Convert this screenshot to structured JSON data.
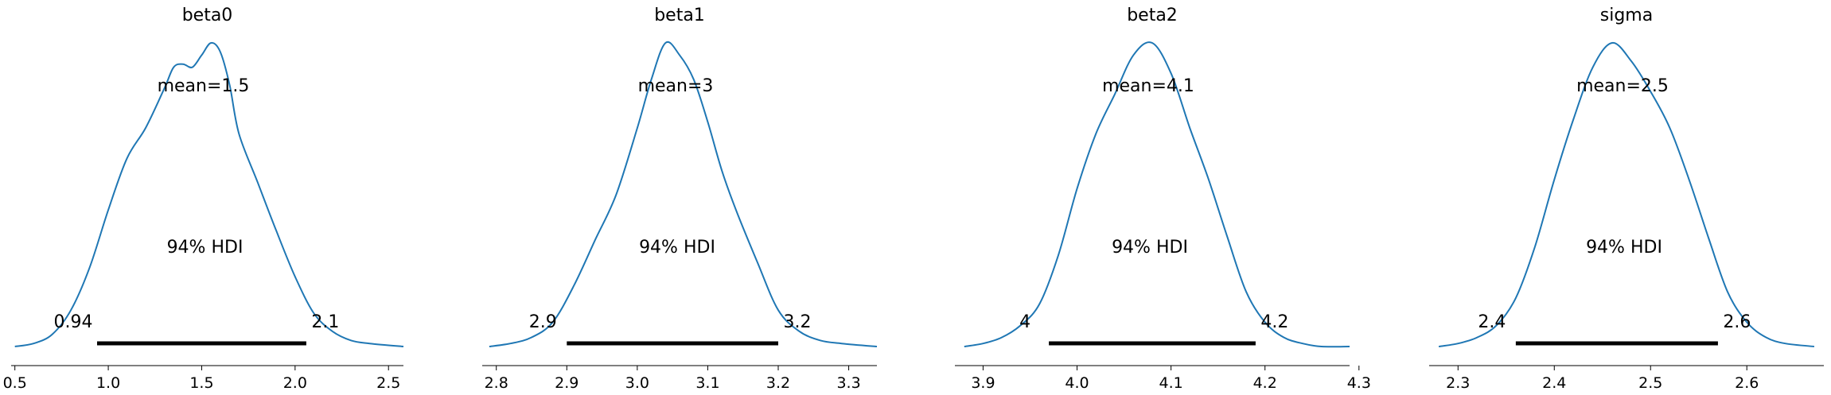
{
  "chart_data": [
    {
      "type": "area",
      "title": "beta0",
      "mean_label": "mean=1.5",
      "hdi_label": "94% HDI",
      "hdi": [
        0.94,
        2.06
      ],
      "hdi_low_label": "0.94",
      "hdi_high_label": "2.1",
      "xlim": [
        0.48,
        2.58
      ],
      "xticks": [
        0.5,
        1.0,
        1.5,
        2.0,
        2.5
      ],
      "xtick_labels": [
        "0.5",
        "1.0",
        "1.5",
        "2.0",
        "2.5"
      ],
      "x": [
        0.5,
        0.6,
        0.7,
        0.8,
        0.9,
        1.0,
        1.1,
        1.2,
        1.3,
        1.35,
        1.4,
        1.45,
        1.5,
        1.55,
        1.6,
        1.65,
        1.7,
        1.8,
        1.9,
        2.0,
        2.1,
        2.2,
        2.3,
        2.4,
        2.58
      ],
      "density": [
        0.0,
        0.01,
        0.04,
        0.12,
        0.26,
        0.45,
        0.62,
        0.72,
        0.85,
        0.92,
        0.93,
        0.92,
        0.96,
        1.0,
        0.97,
        0.86,
        0.7,
        0.54,
        0.38,
        0.23,
        0.11,
        0.05,
        0.02,
        0.01,
        0.0
      ],
      "line_color": "#1f77b4"
    },
    {
      "type": "area",
      "title": "beta1",
      "mean_label": "mean=3",
      "hdi_label": "94% HDI",
      "hdi": [
        2.9,
        3.2
      ],
      "hdi_low_label": "2.9",
      "hdi_high_label": "3.2",
      "xlim": [
        2.78,
        3.34
      ],
      "xticks": [
        2.8,
        2.9,
        3.0,
        3.1,
        3.2,
        3.3
      ],
      "xtick_labels": [
        "2.8",
        "2.9",
        "3.0",
        "3.1",
        "3.2",
        "3.3"
      ],
      "x": [
        2.79,
        2.82,
        2.85,
        2.88,
        2.91,
        2.94,
        2.97,
        3.0,
        3.02,
        3.04,
        3.06,
        3.08,
        3.1,
        3.12,
        3.14,
        3.17,
        3.2,
        3.23,
        3.26,
        3.29,
        3.34
      ],
      "density": [
        0.0,
        0.01,
        0.03,
        0.08,
        0.2,
        0.35,
        0.5,
        0.72,
        0.88,
        1.0,
        0.96,
        0.88,
        0.74,
        0.58,
        0.45,
        0.28,
        0.12,
        0.05,
        0.02,
        0.01,
        0.0
      ],
      "line_color": "#1f77b4"
    },
    {
      "type": "area",
      "title": "beta2",
      "mean_label": "mean=4.1",
      "hdi_label": "94% HDI",
      "hdi": [
        3.97,
        4.19
      ],
      "hdi_low_label": "4",
      "hdi_high_label": "4.2",
      "xlim": [
        3.87,
        4.29
      ],
      "xticks": [
        3.9,
        4.0,
        4.1,
        4.2,
        4.3
      ],
      "xtick_labels": [
        "3.9",
        "4.0",
        "4.1",
        "4.2",
        "4.3"
      ],
      "x": [
        3.88,
        3.9,
        3.92,
        3.94,
        3.96,
        3.98,
        4.0,
        4.02,
        4.04,
        4.06,
        4.08,
        4.1,
        4.12,
        4.14,
        4.16,
        4.18,
        4.2,
        4.22,
        4.24,
        4.26,
        4.29
      ],
      "density": [
        0.0,
        0.01,
        0.03,
        0.07,
        0.14,
        0.3,
        0.52,
        0.7,
        0.83,
        0.96,
        1.0,
        0.9,
        0.72,
        0.55,
        0.36,
        0.18,
        0.08,
        0.03,
        0.01,
        0.0,
        0.0
      ],
      "line_color": "#1f77b4"
    },
    {
      "type": "area",
      "title": "sigma",
      "mean_label": "mean=2.5",
      "hdi_label": "94% HDI",
      "hdi": [
        2.36,
        2.57
      ],
      "hdi_low_label": "2.4",
      "hdi_high_label": "2.6",
      "xlim": [
        2.27,
        2.68
      ],
      "xticks": [
        2.3,
        2.4,
        2.5,
        2.6
      ],
      "xtick_labels": [
        "2.3",
        "2.4",
        "2.5",
        "2.6"
      ],
      "x": [
        2.28,
        2.3,
        2.32,
        2.34,
        2.36,
        2.38,
        2.4,
        2.42,
        2.44,
        2.46,
        2.48,
        2.5,
        2.52,
        2.54,
        2.56,
        2.58,
        2.6,
        2.62,
        2.64,
        2.67
      ],
      "density": [
        0.0,
        0.01,
        0.03,
        0.07,
        0.16,
        0.33,
        0.55,
        0.75,
        0.92,
        1.0,
        0.94,
        0.84,
        0.72,
        0.55,
        0.36,
        0.18,
        0.08,
        0.03,
        0.01,
        0.0
      ],
      "line_color": "#1f77b4"
    }
  ]
}
